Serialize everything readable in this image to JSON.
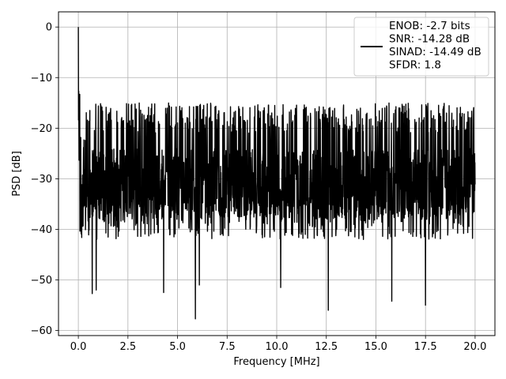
{
  "chart_data": {
    "type": "line",
    "title": "",
    "xlabel": "Frequency [MHz]",
    "ylabel": "PSD [dB]",
    "xlim": [
      -1.0,
      21.0
    ],
    "ylim": [
      -61.0,
      3.0
    ],
    "xticks": [
      0.0,
      2.5,
      5.0,
      7.5,
      10.0,
      12.5,
      15.0,
      17.5,
      20.0
    ],
    "xtick_labels": [
      "0.0",
      "2.5",
      "5.0",
      "7.5",
      "10.0",
      "12.5",
      "15.0",
      "17.5",
      "20.0"
    ],
    "yticks": [
      0,
      -10,
      -20,
      -30,
      -40,
      -50,
      -60
    ],
    "ytick_labels": [
      "0",
      "−10",
      "−20",
      "−30",
      "−40",
      "−50",
      "−60"
    ],
    "grid": true,
    "legend_position": "top-right",
    "line_color": "#000000",
    "series": [
      {
        "legend_lines": [
          "ENOB: -2.7 bits",
          "SNR: -14.28 dB",
          "SINAD: -14.49 dB",
          "SFDR: 1.8"
        ],
        "x_range": [
          0.0,
          20.0
        ],
        "peak": {
          "x": 0.0,
          "y": 0.0
        },
        "noise_floor_top": -18,
        "noise_floor_bottom": -40,
        "deep_nulls": [
          {
            "x": 0.7,
            "y": -52.7
          },
          {
            "x": 0.9,
            "y": -52.0
          },
          {
            "x": 4.3,
            "y": -52.5
          },
          {
            "x": 5.9,
            "y": -57.7
          },
          {
            "x": 6.1,
            "y": -51.0
          },
          {
            "x": 10.2,
            "y": -51.5
          },
          {
            "x": 12.6,
            "y": -56.0
          },
          {
            "x": 15.8,
            "y": -54.2
          },
          {
            "x": 17.5,
            "y": -55.0
          }
        ]
      }
    ]
  }
}
